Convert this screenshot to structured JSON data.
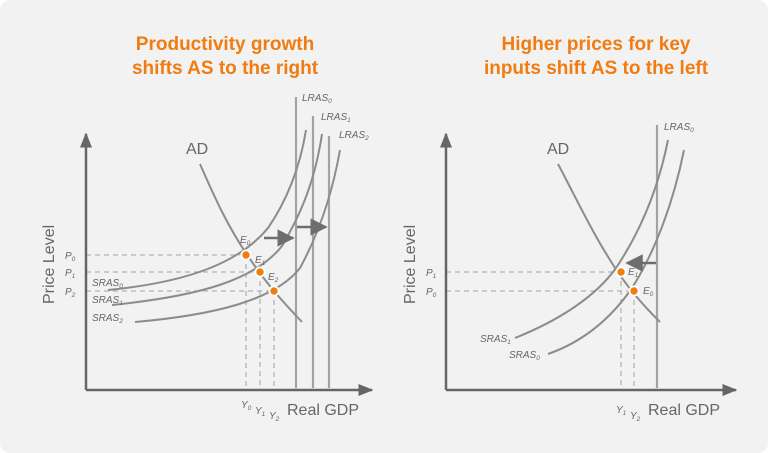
{
  "left_panel": {
    "title_line1": "Productivity growth",
    "title_line2": "shifts AS to the right",
    "ad_label": "AD",
    "lras": [
      {
        "base": "LRAS",
        "sub": "0"
      },
      {
        "base": "LRAS",
        "sub": "1"
      },
      {
        "base": "LRAS",
        "sub": "2"
      }
    ],
    "sras": [
      {
        "base": "SRAS",
        "sub": "0"
      },
      {
        "base": "SRAS",
        "sub": "1"
      },
      {
        "base": "SRAS",
        "sub": "2"
      }
    ],
    "equilibria": [
      {
        "base": "E",
        "sub": "0"
      },
      {
        "base": "E",
        "sub": "1"
      },
      {
        "base": "E",
        "sub": "2"
      }
    ],
    "price_ticks": [
      {
        "base": "P",
        "sub": "0"
      },
      {
        "base": "P",
        "sub": "1"
      },
      {
        "base": "P",
        "sub": "2"
      }
    ],
    "output_ticks": [
      {
        "base": "Y",
        "sub": "0"
      },
      {
        "base": "Y",
        "sub": "1"
      },
      {
        "base": "Y",
        "sub": "2"
      }
    ],
    "y_axis_label": "Price Level",
    "x_axis_label": "Real GDP"
  },
  "right_panel": {
    "title_line1": "Higher prices for key",
    "title_line2": "inputs shift AS to the left",
    "ad_label": "AD",
    "lras": [
      {
        "base": "LRAS",
        "sub": "0"
      }
    ],
    "sras": [
      {
        "base": "SRAS",
        "sub": "1"
      },
      {
        "base": "SRAS",
        "sub": "0"
      }
    ],
    "equilibria": [
      {
        "base": "E",
        "sub": "1"
      },
      {
        "base": "E",
        "sub": "0"
      }
    ],
    "price_ticks": [
      {
        "base": "P",
        "sub": "1"
      },
      {
        "base": "P",
        "sub": "0"
      }
    ],
    "output_ticks": [
      {
        "base": "Y",
        "sub": "1"
      },
      {
        "base": "Y",
        "sub": "2"
      }
    ],
    "y_axis_label": "Price Level",
    "x_axis_label": "Real GDP"
  },
  "colors": {
    "title": "#f07c12",
    "axis": "#666666",
    "curve": "#8c8c8c",
    "lras": "#a3a3a3",
    "dashed": "#b3b3b3",
    "arrow": "#6e6e6e",
    "marker_fill": "#f07c12",
    "marker_stroke": "#ffffff",
    "text": "#666666"
  }
}
